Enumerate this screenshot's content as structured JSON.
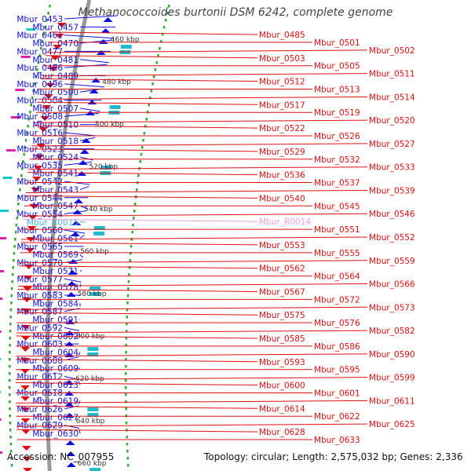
{
  "title": "Methanococcoides burtonii DSM 6242, complete genome",
  "footer": {
    "accession": "Accession: NC_007955",
    "topology": "Topology: circular; Length: 2,575,032 bp; Genes: 2,336"
  },
  "colors": {
    "forward_strand": "#1010dd",
    "reverse_strand": "#dd1010",
    "rna_label": "#44bbdd",
    "rna_label_reverse": "#e9a0e0",
    "backbone": "#999999",
    "dotted_ring": "#33aa33",
    "scale_text": "#333333"
  },
  "scale_ticks": [
    "460 kbp",
    "480 kbp",
    "500 kbp",
    "520 kbp",
    "540 kbp",
    "560 kbp",
    "580 kbp",
    "600 kbp",
    "620 kbp",
    "640 kbp",
    "660 kbp"
  ],
  "left_labels": [
    "Mbur_0453",
    "Mbur_0457",
    "Mbur_0461",
    "Mbur_0470",
    "Mbur_0477",
    "Mbur_0481",
    "Mbur_0486",
    "Mbur_0489",
    "Mbur_0496",
    "Mbur_0500",
    "Mbur_0504",
    "Mbur_0507",
    "Mbur_0508",
    "Mbur_0510",
    "Mbur_0516",
    "Mbur_0518",
    "Mbur_0523",
    "Mbur_0524",
    "Mbur_0535",
    "Mbur_0541",
    "Mbur_0542",
    "Mbur_0543",
    "Mbur_0544",
    "Mbur_0547",
    "Mbur_0554",
    "Mbur_R0015",
    "Mbur_0560",
    "Mbur_0561",
    "Mbur_0565",
    "Mbur_0569",
    "Mbur_0570",
    "Mbur_0571",
    "Mbur_0577",
    "Mbur_0578",
    "Mbur_0583",
    "Mbur_0584",
    "Mbur_0587",
    "Mbur_0591",
    "Mbur_0592",
    "Mbur_0602",
    "Mbur_0603",
    "Mbur_0604",
    "Mbur_0608",
    "Mbur_0609",
    "Mbur_0612",
    "Mbur_0613",
    "Mbur_0618",
    "Mbur_0619",
    "Mbur_0626",
    "Mbur_0627",
    "Mbur_0629",
    "Mbur_0630"
  ],
  "right_labels": [
    "Mbur_0485",
    "Mbur_0501",
    "Mbur_0502",
    "Mbur_0503",
    "Mbur_0505",
    "Mbur_0511",
    "Mbur_0512",
    "Mbur_0513",
    "Mbur_0514",
    "Mbur_0517",
    "Mbur_0519",
    "Mbur_0520",
    "Mbur_0522",
    "Mbur_0526",
    "Mbur_0527",
    "Mbur_0529",
    "Mbur_0532",
    "Mbur_0533",
    "Mbur_0536",
    "Mbur_0537",
    "Mbur_0539",
    "Mbur_0540",
    "Mbur_0545",
    "Mbur_0546",
    "Mbur_R0014",
    "Mbur_0551",
    "Mbur_0552",
    "Mbur_0553",
    "Mbur_0555",
    "Mbur_0559",
    "Mbur_0562",
    "Mbur_0564",
    "Mbur_0566",
    "Mbur_0567",
    "Mbur_0572",
    "Mbur_0573",
    "Mbur_0575",
    "Mbur_0576",
    "Mbur_0582",
    "Mbur_0585",
    "Mbur_0586",
    "Mbur_0590",
    "Mbur_0593",
    "Mbur_0595",
    "Mbur_0599",
    "Mbur_0600",
    "Mbur_0601",
    "Mbur_0611",
    "Mbur_0614",
    "Mbur_0622",
    "Mbur_0625",
    "Mbur_0628",
    "Mbur_0633"
  ]
}
